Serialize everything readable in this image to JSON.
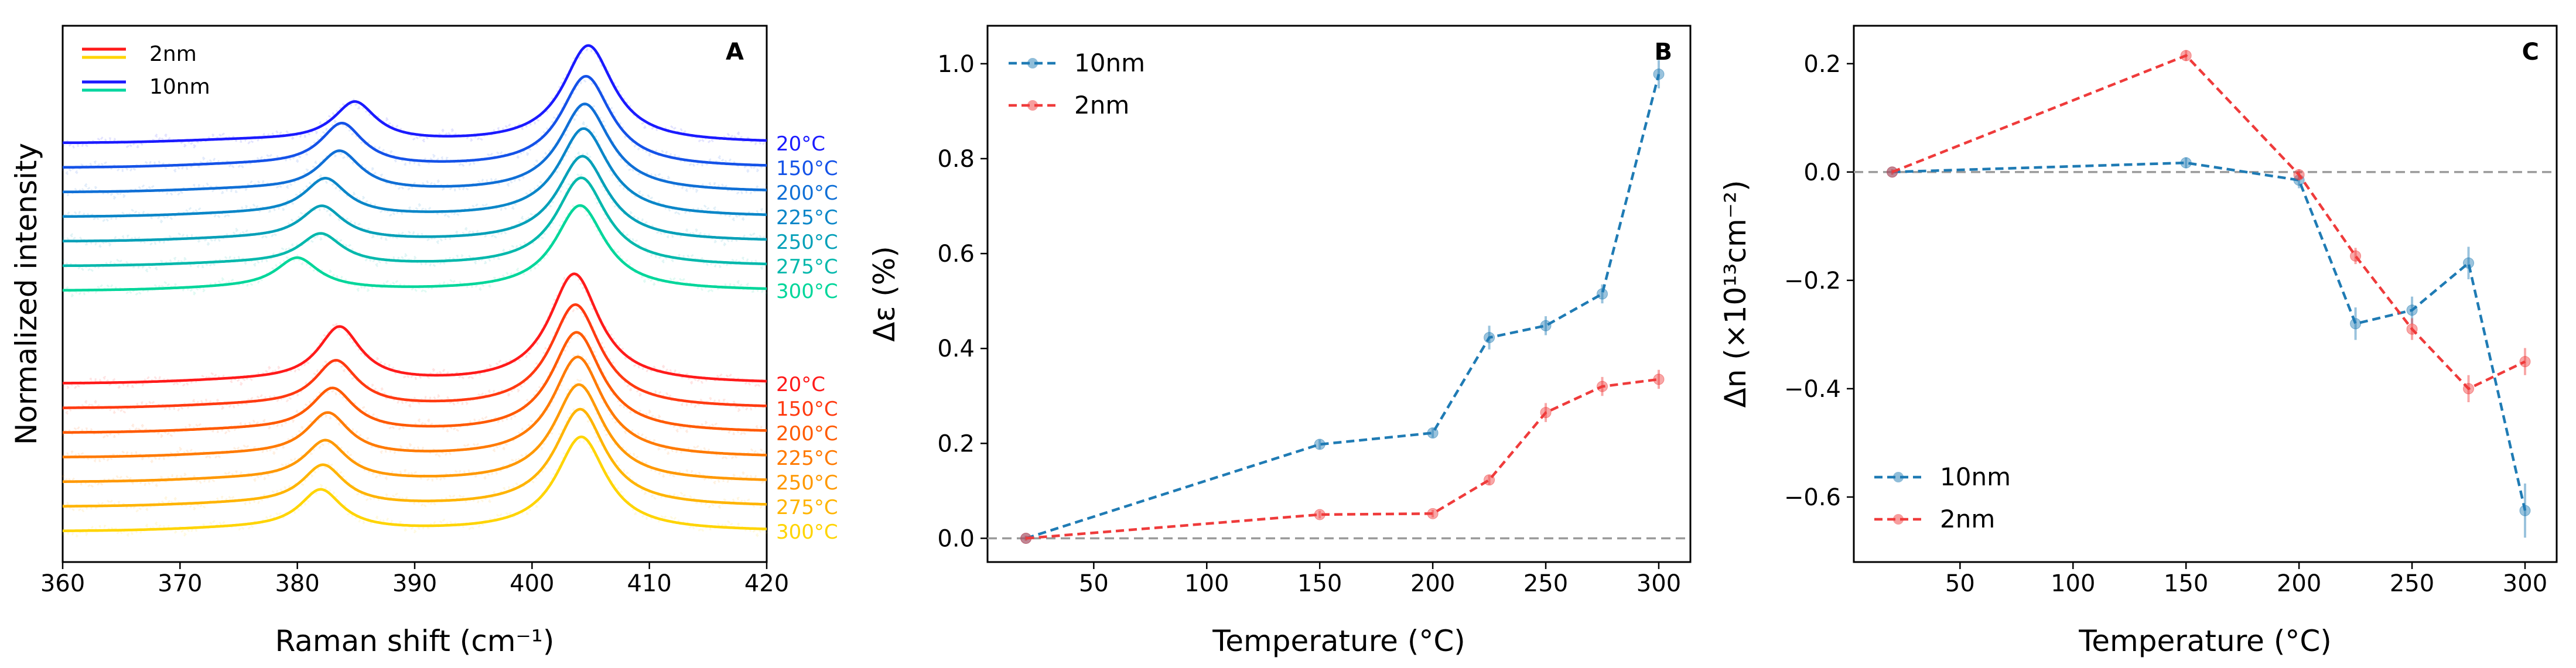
{
  "figure_title": "",
  "chart_data": [
    {
      "panel": "A",
      "type": "line",
      "title": "",
      "xlabel": "Raman shift (cm⁻¹)",
      "ylabel": "Normalized intensity",
      "xlim": [
        360,
        420
      ],
      "xticks": [
        360,
        370,
        380,
        390,
        400,
        410,
        420
      ],
      "yticks": [],
      "grid": false,
      "legend_position": "top-left",
      "legend": [
        {
          "label": "2nm",
          "colors": [
            "#ff1a1a",
            "#ffd400"
          ]
        },
        {
          "label": "10nm",
          "colors": [
            "#1a1aff",
            "#00d6a0"
          ]
        }
      ],
      "series": [
        {
          "name": "10nm 20°C",
          "group": "10nm",
          "temperature": 20,
          "offset": 0,
          "color": "#1a1aff",
          "peak1_center": 384.9,
          "peak1_height": 1.3,
          "peak2_center": 404.8,
          "peak2_height": 3.2
        },
        {
          "name": "10nm 150°C",
          "group": "10nm",
          "temperature": 150,
          "offset": 1,
          "color": "#1452e8",
          "peak1_center": 383.8,
          "peak1_height": 1.4,
          "peak2_center": 404.6,
          "peak2_height": 3.0
        },
        {
          "name": "10nm 200°C",
          "group": "10nm",
          "temperature": 200,
          "offset": 2,
          "color": "#0f6fd6",
          "peak1_center": 383.6,
          "peak1_height": 1.3,
          "peak2_center": 404.5,
          "peak2_height": 2.9
        },
        {
          "name": "10nm 225°C",
          "group": "10nm",
          "temperature": 225,
          "offset": 3,
          "color": "#0a86c8",
          "peak1_center": 382.4,
          "peak1_height": 1.2,
          "peak2_center": 404.4,
          "peak2_height": 2.9
        },
        {
          "name": "10nm 250°C",
          "group": "10nm",
          "temperature": 250,
          "offset": 4,
          "color": "#05a0b8",
          "peak1_center": 382.1,
          "peak1_height": 1.1,
          "peak2_center": 404.3,
          "peak2_height": 2.8
        },
        {
          "name": "10nm 275°C",
          "group": "10nm",
          "temperature": 275,
          "offset": 5,
          "color": "#03b8ac",
          "peak1_center": 382.0,
          "peak1_height": 1.0,
          "peak2_center": 404.2,
          "peak2_height": 2.9
        },
        {
          "name": "10nm 300°C",
          "group": "10nm",
          "temperature": 300,
          "offset": 6,
          "color": "#00d69a",
          "peak1_center": 380.0,
          "peak1_height": 1.0,
          "peak2_center": 404.1,
          "peak2_height": 2.8
        },
        {
          "name": "2nm 20°C",
          "group": "2nm",
          "temperature": 20,
          "offset": 10,
          "color": "#ff1a1a",
          "peak1_center": 383.6,
          "peak1_height": 1.8,
          "peak2_center": 403.6,
          "peak2_height": 3.6
        },
        {
          "name": "2nm 150°C",
          "group": "2nm",
          "temperature": 150,
          "offset": 11,
          "color": "#ff3a10",
          "peak1_center": 383.3,
          "peak1_height": 1.5,
          "peak2_center": 403.7,
          "peak2_height": 3.4
        },
        {
          "name": "2nm 200°C",
          "group": "2nm",
          "temperature": 200,
          "offset": 12,
          "color": "#ff5a00",
          "peak1_center": 383.0,
          "peak1_height": 1.4,
          "peak2_center": 403.8,
          "peak2_height": 3.3
        },
        {
          "name": "2nm 225°C",
          "group": "2nm",
          "temperature": 225,
          "offset": 13,
          "color": "#ff7a00",
          "peak1_center": 382.6,
          "peak1_height": 1.4,
          "peak2_center": 403.9,
          "peak2_height": 3.3
        },
        {
          "name": "2nm 250°C",
          "group": "2nm",
          "temperature": 250,
          "offset": 14,
          "color": "#ff9800",
          "peak1_center": 382.4,
          "peak1_height": 1.3,
          "peak2_center": 404.0,
          "peak2_height": 3.2
        },
        {
          "name": "2nm 275°C",
          "group": "2nm",
          "temperature": 275,
          "offset": 15,
          "color": "#ffb400",
          "peak1_center": 382.2,
          "peak1_height": 1.3,
          "peak2_center": 404.1,
          "peak2_height": 3.2
        },
        {
          "name": "2nm 300°C",
          "group": "2nm",
          "temperature": 300,
          "offset": 16,
          "color": "#ffd400",
          "peak1_center": 382.0,
          "peak1_height": 1.3,
          "peak2_center": 404.2,
          "peak2_height": 3.1
        }
      ],
      "curve_labels": [
        "20°C",
        "150°C",
        "200°C",
        "225°C",
        "250°C",
        "275°C",
        "300°C"
      ]
    },
    {
      "panel": "B",
      "type": "line",
      "title": "",
      "xlabel": "Temperature (°C)",
      "ylabel": "Δε (%)",
      "xlim": [
        3,
        314
      ],
      "ylim": [
        -0.05,
        1.08
      ],
      "xticks": [
        50,
        100,
        150,
        200,
        250,
        300
      ],
      "yticks": [
        0.0,
        0.2,
        0.4,
        0.6,
        0.8,
        1.0
      ],
      "ytick_labels": [
        "0.0",
        "0.2",
        "0.4",
        "0.6",
        "0.8",
        "1.0"
      ],
      "reference_line": 0,
      "grid": false,
      "legend_position": "top-left",
      "series": [
        {
          "name": "10nm",
          "color": "#1f7bb4",
          "x": [
            20,
            150,
            200,
            225,
            250,
            275,
            300
          ],
          "y": [
            0.0,
            0.198,
            0.222,
            0.423,
            0.448,
            0.515,
            0.978
          ],
          "yerr": [
            0.004,
            0.01,
            0.01,
            0.025,
            0.02,
            0.02,
            0.03
          ]
        },
        {
          "name": "2nm",
          "color": "#ef3b3b",
          "x": [
            20,
            150,
            200,
            225,
            250,
            275,
            300
          ],
          "y": [
            0.0,
            0.05,
            0.052,
            0.123,
            0.265,
            0.32,
            0.335
          ],
          "yerr": [
            0.004,
            0.008,
            0.008,
            0.01,
            0.02,
            0.02,
            0.02
          ]
        }
      ]
    },
    {
      "panel": "C",
      "type": "line",
      "title": "",
      "xlabel": "Temperature (°C)",
      "ylabel": "Δn (×10¹³cm⁻²)",
      "xlim": [
        3,
        314
      ],
      "ylim": [
        -0.72,
        0.27
      ],
      "xticks": [
        50,
        100,
        150,
        200,
        250,
        300
      ],
      "yticks": [
        0.2,
        0.0,
        -0.2,
        -0.4,
        -0.6
      ],
      "ytick_labels": [
        "0.2",
        "0.0",
        "−0.2",
        "−0.4",
        "−0.6"
      ],
      "reference_line": 0,
      "grid": false,
      "legend_position": "bottom-left",
      "series": [
        {
          "name": "10nm",
          "color": "#1f7bb4",
          "x": [
            20,
            150,
            200,
            225,
            250,
            275,
            300
          ],
          "y": [
            0.0,
            0.017,
            -0.015,
            -0.28,
            -0.255,
            -0.168,
            -0.625
          ],
          "yerr": [
            0.005,
            0.01,
            0.015,
            0.03,
            0.025,
            0.03,
            0.05
          ]
        },
        {
          "name": "2nm",
          "color": "#ef3b3b",
          "x": [
            20,
            150,
            200,
            225,
            250,
            275,
            300
          ],
          "y": [
            0.0,
            0.215,
            -0.005,
            -0.155,
            -0.29,
            -0.4,
            -0.35
          ],
          "yerr": [
            0.005,
            0.01,
            0.01,
            0.015,
            0.02,
            0.025,
            0.025
          ]
        }
      ]
    }
  ]
}
